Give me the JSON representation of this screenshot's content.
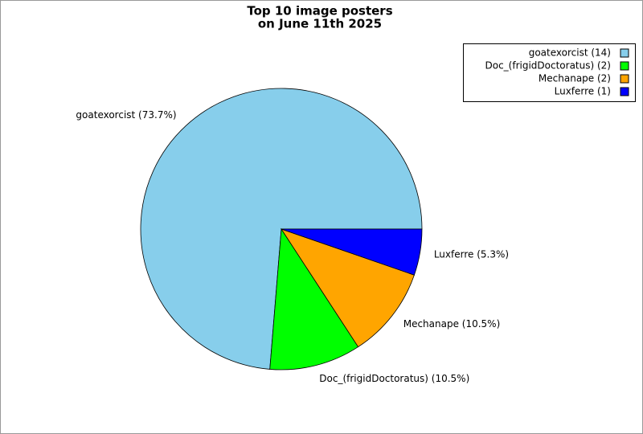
{
  "chart_data": {
    "type": "pie",
    "title": [
      "Top 10 image posters",
      "on June 11th 2025"
    ],
    "categories": [
      "goatexorcist",
      "Doc_(frigidDoctoratus)",
      "Mechanape",
      "Luxferre"
    ],
    "values": [
      73.7,
      10.5,
      10.5,
      5.3
    ],
    "value_labels": [
      "goatexorcist (73.7%)",
      "Doc_(frigidDoctoratus) (10.5%)",
      "Mechanape (10.5%)",
      "Luxferre (5.3%)"
    ],
    "legend_labels": [
      "goatexorcist (14)",
      "Doc_(frigidDoctoratus) (2)",
      "Mechanape (2)",
      "Luxferre (1)"
    ],
    "colors": [
      "#87ceeb",
      "#00ff00",
      "#ffa500",
      "#0000ff"
    ],
    "legend": "upper right"
  }
}
